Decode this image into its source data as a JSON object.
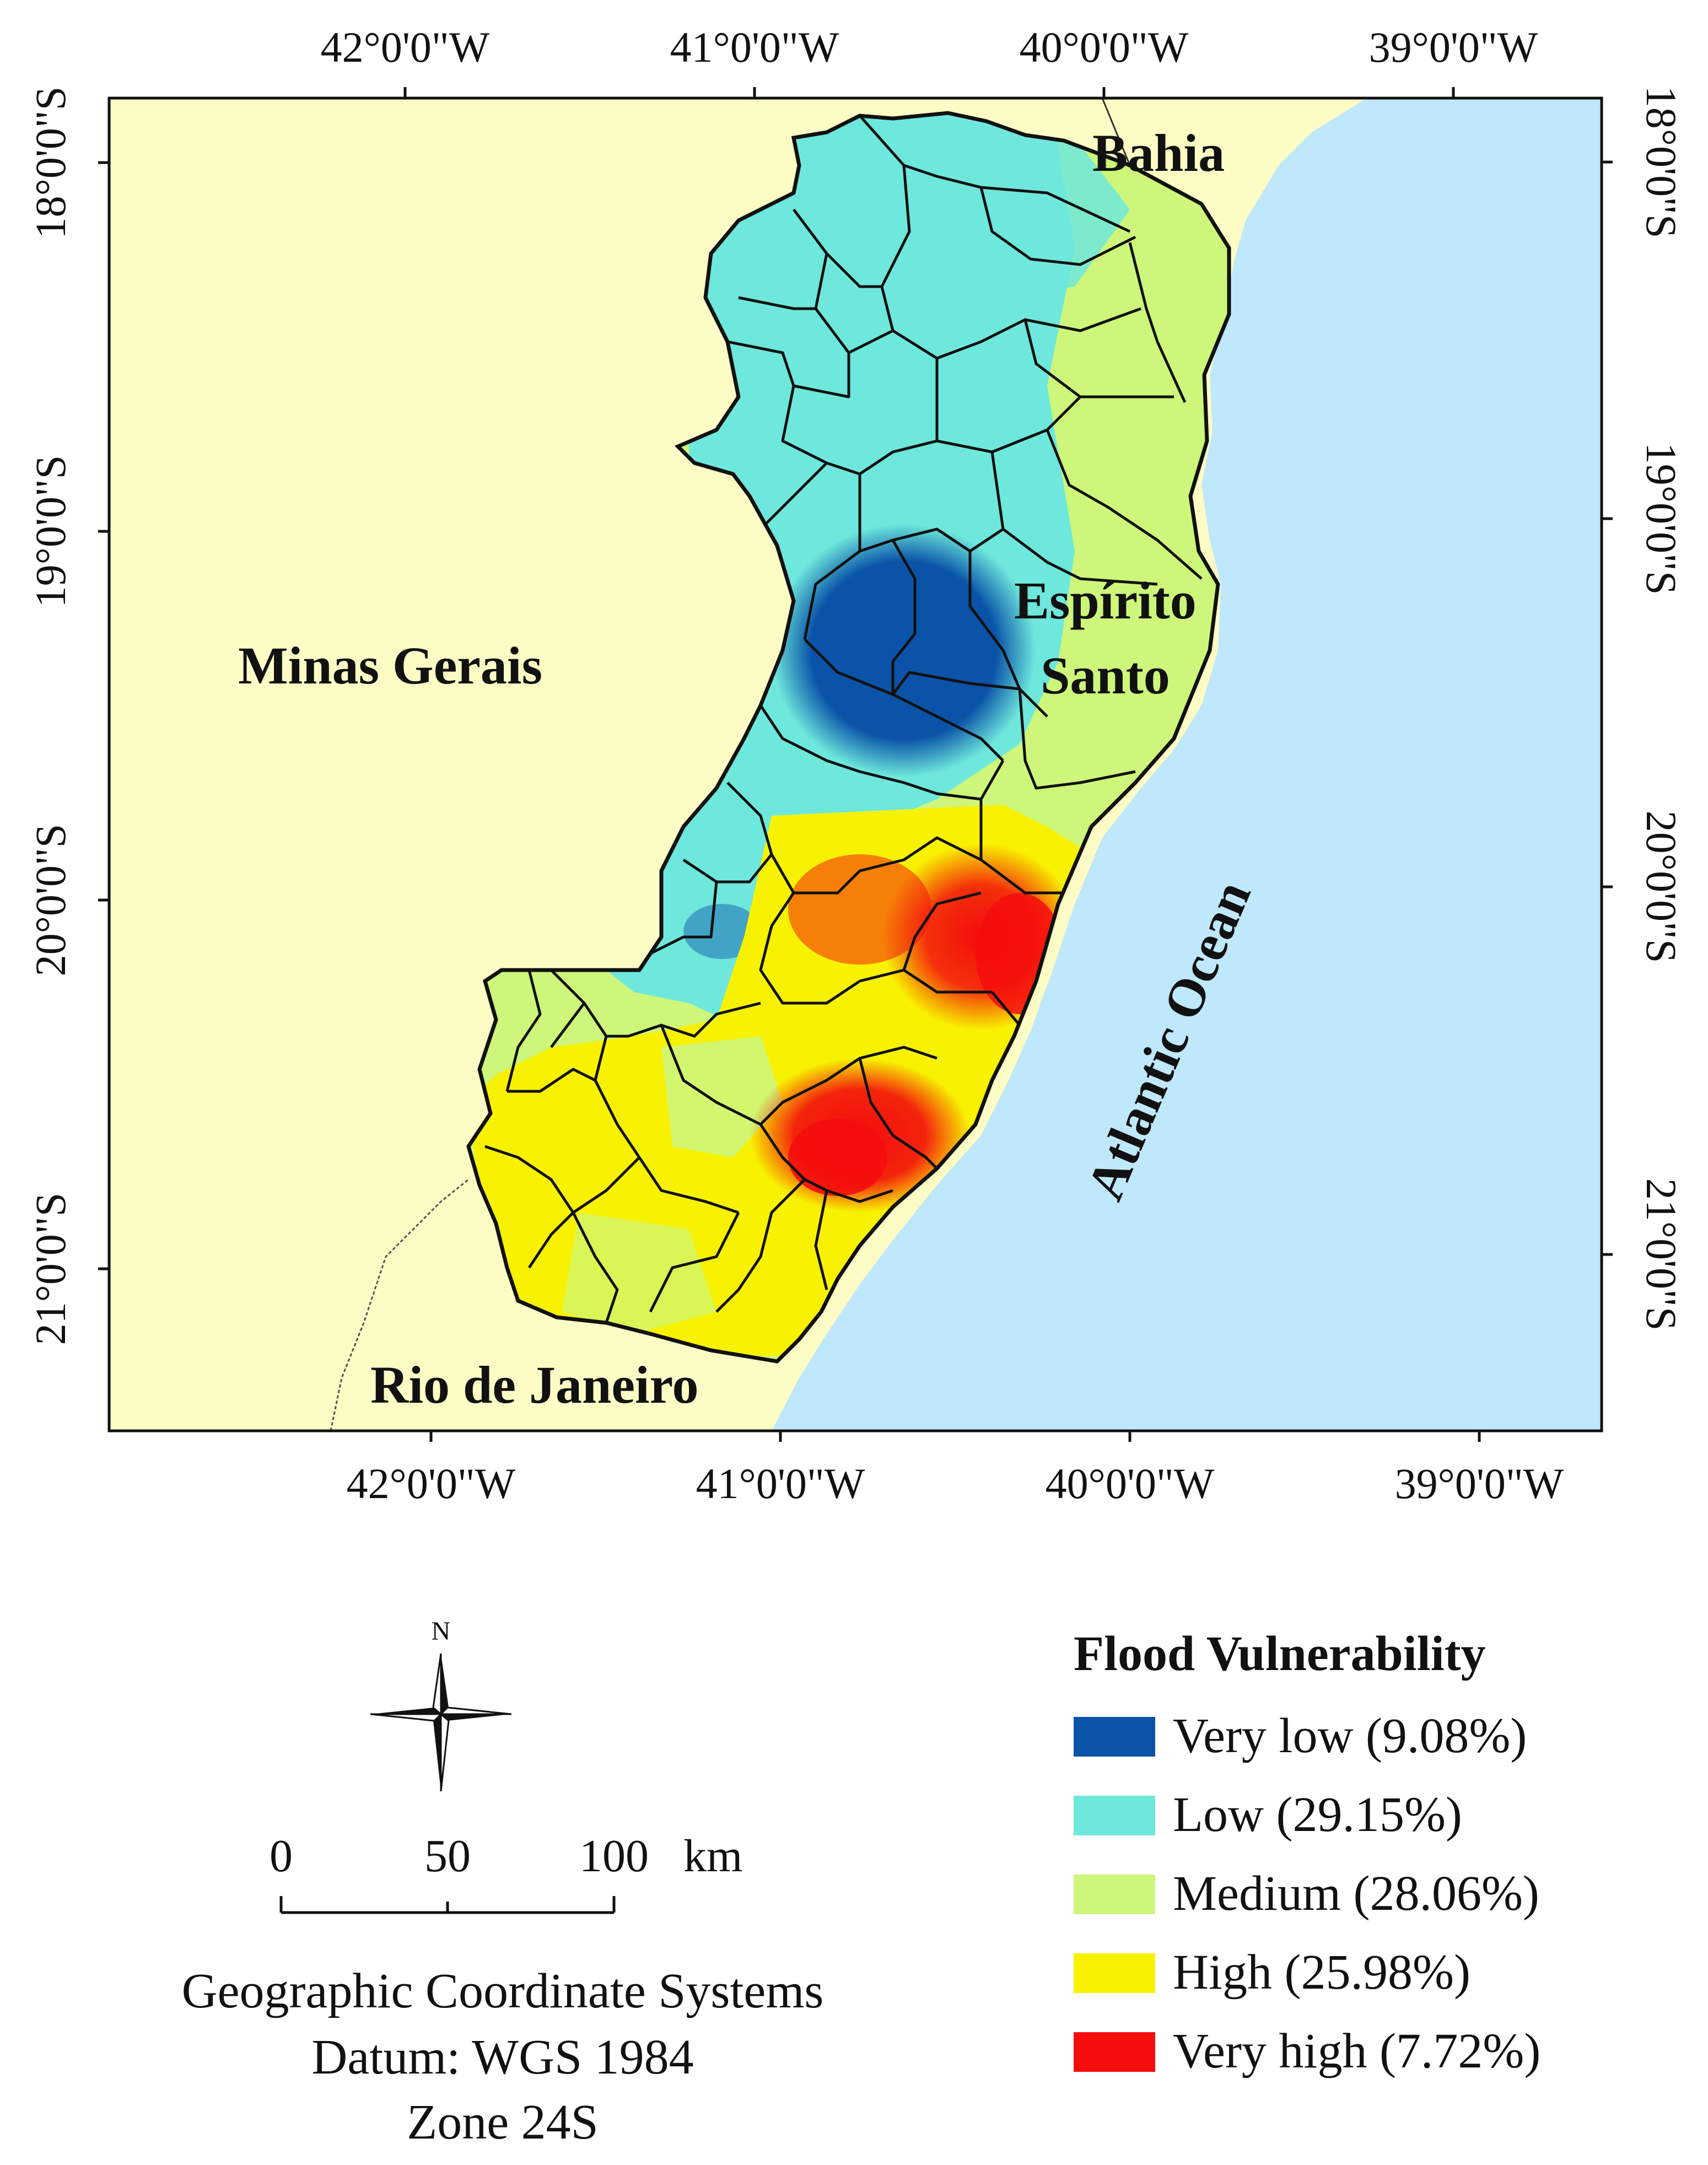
{
  "map": {
    "top_ticks": [
      "42°0'0\"W",
      "41°0'0\"W",
      "40°0'0\"W",
      "39°0'0\"W"
    ],
    "bottom_ticks": [
      "42°0'0\"W",
      "41°0'0\"W",
      "40°0'0\"W",
      "39°0'0\"W"
    ],
    "left_ticks": [
      "18°0'0\"S",
      "19°0'0\"S",
      "20°0'0\"S",
      "21°0'0\"S"
    ],
    "right_ticks": [
      "18°0'0\"S",
      "19°0'0\"S",
      "20°0'0\"S",
      "21°0'0\"S"
    ],
    "labels": {
      "bahia": "Bahia",
      "minas_gerais": "Minas Gerais",
      "espirito_line1": "Espírito",
      "espirito_line2": "Santo",
      "rio": "Rio de Janeiro",
      "ocean": "Atlantic Ocean"
    },
    "colors": {
      "neighbor_land": "#fdfcc5",
      "ocean": "#bfe8fc",
      "very_low": "#0a53a8",
      "low": "#6ee8dc",
      "medium": "#cdf67a",
      "high": "#f8f200",
      "very_high": "#f40d0d"
    }
  },
  "north_arrow": {
    "label": "N"
  },
  "scale_bar": {
    "ticks": [
      "0",
      "50",
      "100"
    ],
    "unit": "km"
  },
  "legend": {
    "title": "Flood Vulnerability",
    "items": [
      {
        "label": "Very low (9.08%)",
        "color": "#0a53a8"
      },
      {
        "label": "Low (29.15%)",
        "color": "#6ee8dc"
      },
      {
        "label": "Medium (28.06%)",
        "color": "#cdf67a"
      },
      {
        "label": "High (25.98%)",
        "color": "#f8f200"
      },
      {
        "label": "Very high (7.72%)",
        "color": "#f40d0d"
      }
    ]
  },
  "crs_note": {
    "line1": "Geographic Coordinate Systems",
    "line2": "Datum: WGS 1984",
    "line3": "Zone 24S"
  }
}
